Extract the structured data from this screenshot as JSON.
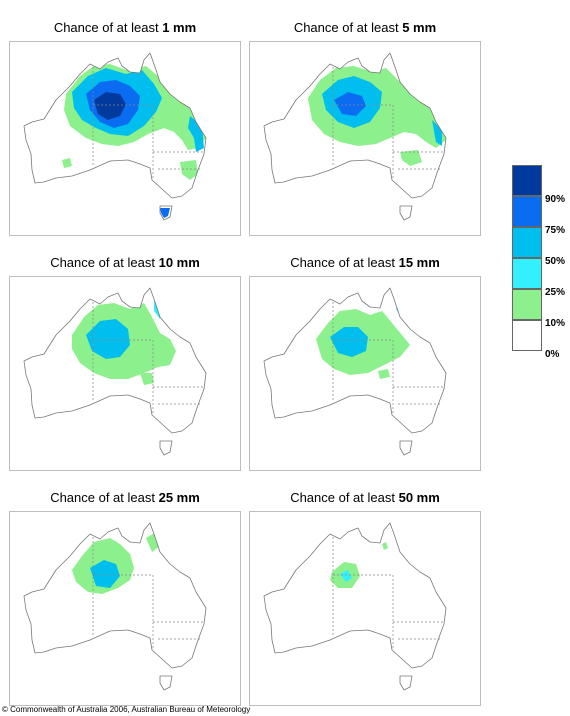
{
  "panels": [
    {
      "prefix": "Chance of at least ",
      "amount": "1 mm",
      "level": 0
    },
    {
      "prefix": "Chance of at least ",
      "amount": "5 mm",
      "level": 1
    },
    {
      "prefix": "Chance of at least ",
      "amount": "10 mm",
      "level": 2
    },
    {
      "prefix": "Chance of at least ",
      "amount": "15 mm",
      "level": 3
    },
    {
      "prefix": "Chance of at least ",
      "amount": "25 mm",
      "level": 4
    },
    {
      "prefix": "Chance of at least ",
      "amount": "50 mm",
      "level": 5
    }
  ],
  "legend": {
    "colors": [
      "#003a9c",
      "#0a6cf0",
      "#00bfef",
      "#33f0ff",
      "#8cf08c",
      "#ffffff"
    ],
    "labels": [
      "90%",
      "75%",
      "50%",
      "25%",
      "10%",
      "0%"
    ]
  },
  "footer": {
    "copyright": "© Commonwealth of Australia 2006, Australian Bureau of Meteorology"
  }
}
